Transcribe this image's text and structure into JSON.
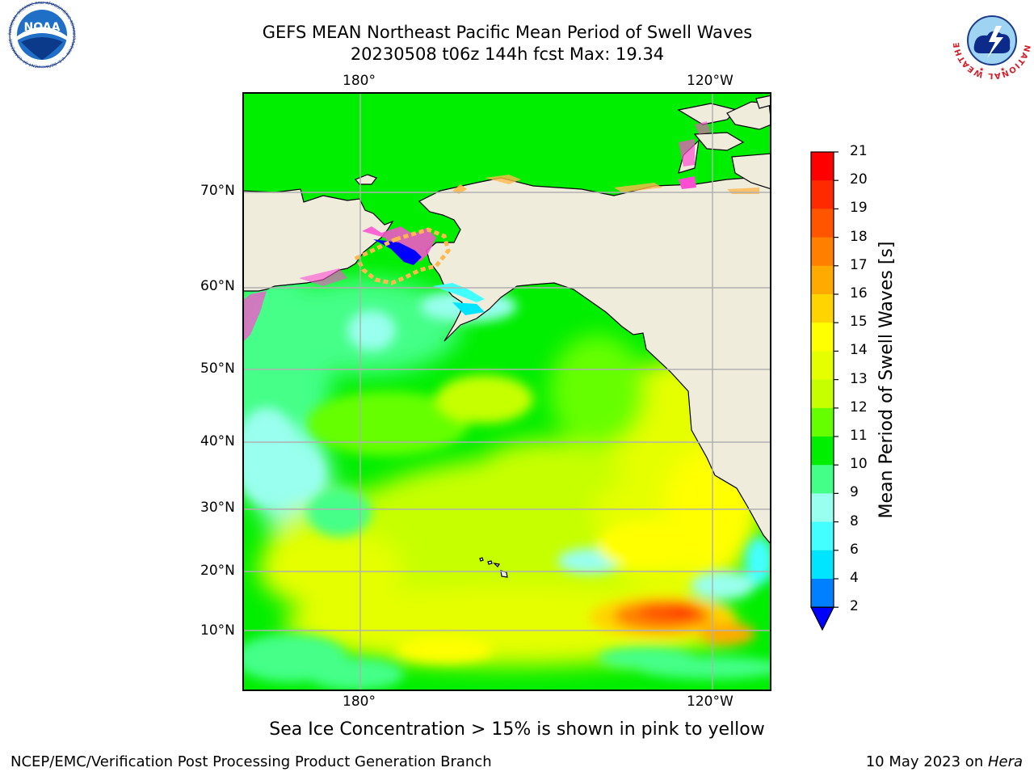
{
  "header": {
    "title_line1": "GEFS MEAN Northeast Pacific Mean Period of Swell Waves",
    "title_line2": "20230508 t06z 144h fcst   Max: 19.34"
  },
  "logos": {
    "left_icon": "noaa-logo-icon",
    "left_text": "NOAA",
    "left_ring_text": "NATIONAL OCEANIC AND ATMOSPHERIC ADMINISTRATION · U.S. DEPARTMENT OF COMMERCE",
    "right_icon": "nws-logo-icon",
    "right_ring_text": "NATIONAL WEATHER SERVICE"
  },
  "map": {
    "top_lon_labels": [
      "180°",
      "120°W"
    ],
    "bottom_lon_labels": [
      "180°",
      "120°W"
    ],
    "lat_labels": [
      "70°N",
      "60°N",
      "50°N",
      "40°N",
      "30°N",
      "20°N",
      "10°N"
    ],
    "colors": {
      "land": "#efecdc",
      "grid": "#b0b0b0",
      "sea_ice_pink": "#ff4dd2",
      "sea_ice_orange": "#ffb84d"
    }
  },
  "colorbar": {
    "label": "Mean Period of Swell Waves [s]",
    "ticks": [
      "21",
      "20",
      "19",
      "18",
      "17",
      "16",
      "15",
      "14",
      "13",
      "12",
      "11",
      "10",
      "9",
      "8",
      "6",
      "4",
      "2"
    ],
    "bands": [
      {
        "from": 20,
        "to": 21,
        "color": "#ff0000"
      },
      {
        "from": 19,
        "to": 20,
        "color": "#ff2a00"
      },
      {
        "from": 18,
        "to": 19,
        "color": "#ff5500"
      },
      {
        "from": 17,
        "to": 18,
        "color": "#ff8000"
      },
      {
        "from": 16,
        "to": 17,
        "color": "#ffaa00"
      },
      {
        "from": 15,
        "to": 16,
        "color": "#ffd400"
      },
      {
        "from": 14,
        "to": 15,
        "color": "#ffff00"
      },
      {
        "from": 13,
        "to": 14,
        "color": "#e5ff00"
      },
      {
        "from": 12,
        "to": 13,
        "color": "#c6ff00"
      },
      {
        "from": 11,
        "to": 12,
        "color": "#66ff00"
      },
      {
        "from": 10,
        "to": 11,
        "color": "#00ee00"
      },
      {
        "from": 9,
        "to": 10,
        "color": "#44ff88"
      },
      {
        "from": 8,
        "to": 9,
        "color": "#99ffee"
      },
      {
        "from": 6,
        "to": 8,
        "color": "#44ffff"
      },
      {
        "from": 4,
        "to": 6,
        "color": "#00e5ff"
      },
      {
        "from": 2,
        "to": 4,
        "color": "#0080ff"
      }
    ],
    "under_color": "#0000ff"
  },
  "footer": {
    "note": "Sea Ice Concentration > 15% is shown in pink to yellow",
    "credit_left": "NCEP/EMC/Verification Post Processing Product Generation Branch",
    "date_text": "10 May 2023 on ",
    "machine": "Hera"
  }
}
